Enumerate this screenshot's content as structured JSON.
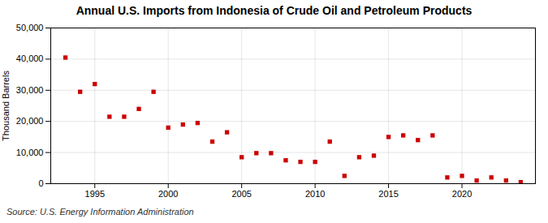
{
  "chart_data": {
    "type": "scatter",
    "title": "Annual U.S. Imports from Indonesia of Crude Oil and Petroleum Products",
    "ylabel": "Thousand Barrels",
    "annotations": [
      "Source: U.S. Energy Information Administration"
    ],
    "x": [
      1993,
      1994,
      1995,
      1996,
      1997,
      1998,
      1999,
      2000,
      2001,
      2002,
      2003,
      2004,
      2005,
      2006,
      2007,
      2008,
      2009,
      2010,
      2011,
      2012,
      2013,
      2014,
      2015,
      2016,
      2017,
      2018,
      2019,
      2020,
      2021,
      2022,
      2023,
      2024
    ],
    "values": [
      40500,
      29500,
      32000,
      21500,
      21500,
      24000,
      29500,
      18000,
      19000,
      19500,
      13500,
      16500,
      8500,
      9800,
      9800,
      7500,
      7000,
      7000,
      13500,
      2500,
      8500,
      9000,
      15000,
      15500,
      14000,
      15500,
      2000,
      2500,
      1000,
      2000,
      1000,
      500
    ],
    "color": "#cc0000",
    "marker": "square",
    "xlim": [
      1992,
      2025
    ],
    "xticks": [
      1995,
      2000,
      2005,
      2010,
      2015,
      2020
    ],
    "ylim": [
      0,
      50000
    ],
    "yticks": [
      0,
      {
        "value": 10000,
        "label": "10,000"
      },
      {
        "value": 20000,
        "label": "20,000"
      },
      {
        "value": 30000,
        "label": "30,000"
      },
      {
        "value": 40000,
        "label": "40,000"
      },
      {
        "value": 50000,
        "label": "50,000"
      }
    ],
    "grid": true
  }
}
